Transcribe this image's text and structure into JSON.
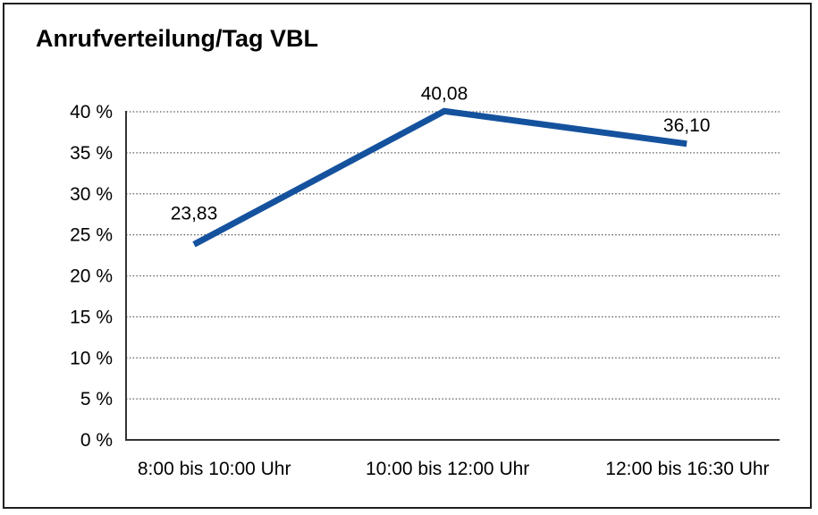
{
  "chart_data": {
    "type": "line",
    "title": "Anrufverteilung/Tag VBL",
    "categories": [
      "8:00 bis 10:00 Uhr",
      "10:00 bis 12:00 Uhr",
      "12:00 bis 16:30 Uhr"
    ],
    "series": [
      {
        "name": "Anrufverteilung/Tag VBL",
        "values": [
          23.83,
          40.08,
          36.1
        ]
      }
    ],
    "point_labels": [
      "23,83",
      "40,08",
      "36,10"
    ],
    "yticks": [
      0,
      5,
      10,
      15,
      20,
      25,
      30,
      35,
      40
    ],
    "ytick_labels": [
      "0 %",
      "5 %",
      "10 %",
      "15 %",
      "20 %",
      "25 %",
      "30 %",
      "35 %",
      "40 %"
    ],
    "ylim": [
      0,
      40
    ],
    "xlabel": "",
    "ylabel": "",
    "legend": "none",
    "grid": "horizontal-dotted",
    "line_color": "#15529e",
    "text_color": "#000000",
    "grid_color": "#595959",
    "axis_color": "#333333",
    "frame_color": "#1f1f1f",
    "background_color": "#ffffff"
  }
}
